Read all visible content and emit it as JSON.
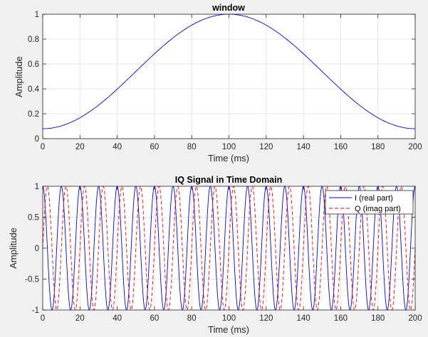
{
  "chart_data": [
    {
      "type": "line",
      "title": "window",
      "xlabel": "Time (ms)",
      "ylabel": "Amplitude",
      "xlim": [
        0,
        200
      ],
      "ylim": [
        0,
        1
      ],
      "xticks": [
        "0",
        "20",
        "40",
        "60",
        "80",
        "100",
        "120",
        "140",
        "160",
        "180",
        "200"
      ],
      "yticks": [
        "0",
        "0.2",
        "0.4",
        "0.6",
        "0.8",
        "1"
      ],
      "grid": true,
      "series": [
        {
          "color": "#0000ff",
          "style": "solid",
          "x": [
            0,
            10,
            20,
            30,
            40,
            50,
            60,
            70,
            80,
            90,
            100,
            110,
            120,
            130,
            140,
            150,
            160,
            170,
            180,
            190,
            200
          ],
          "y": [
            0.08,
            0.103,
            0.168,
            0.27,
            0.398,
            0.54,
            0.682,
            0.81,
            0.912,
            0.977,
            1.0,
            0.977,
            0.912,
            0.81,
            0.682,
            0.54,
            0.398,
            0.27,
            0.168,
            0.103,
            0.08
          ]
        }
      ]
    },
    {
      "type": "line",
      "title": "IQ Signal in Time Domain",
      "xlabel": "Time (ms)",
      "ylabel": "Amplitude",
      "xlim": [
        0,
        200
      ],
      "ylim": [
        -1,
        1
      ],
      "xticks": [
        "0",
        "20",
        "40",
        "60",
        "80",
        "100",
        "120",
        "140",
        "160",
        "180",
        "200"
      ],
      "yticks": [
        "-1",
        "-0.5",
        "0",
        "0.5",
        "1"
      ],
      "grid": true,
      "legend_position": "top-right",
      "frequency_cycles_per_ms": 0.1,
      "series": [
        {
          "name": "I (real part)",
          "color": "#0000ff",
          "style": "solid",
          "function": "cos(2*pi*0.1*t)"
        },
        {
          "name": "Q (imag part)",
          "color": "#ff0000",
          "style": "dashed",
          "function": "sin(2*pi*0.1*t)"
        }
      ]
    }
  ]
}
